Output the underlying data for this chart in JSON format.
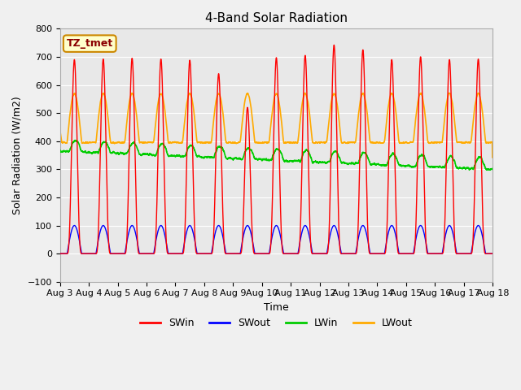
{
  "title": "4-Band Solar Radiation",
  "xlabel": "Time",
  "ylabel": "Solar Radiation (W/m2)",
  "annotation_label": "TZ_tmet",
  "ylim": [
    -100,
    800
  ],
  "background_color": "#f0f0f0",
  "plot_bg_color": "#e8e8e8",
  "legend_entries": [
    "SWin",
    "SWout",
    "LWin",
    "LWout"
  ],
  "line_colors": {
    "SWin": "#ff0000",
    "SWout": "#0000ff",
    "LWin": "#00cc00",
    "LWout": "#ffaa00"
  },
  "x_tick_labels": [
    "Aug 3",
    "Aug 4",
    "Aug 5",
    "Aug 6",
    "Aug 7",
    "Aug 8",
    "Aug 9",
    "Aug 10",
    "Aug 11",
    "Aug 12",
    "Aug 13",
    "Aug 14",
    "Aug 15",
    "Aug 16",
    "Aug 17",
    "Aug 18"
  ],
  "days": 15,
  "figsize": [
    6.4,
    4.8
  ],
  "dpi": 100
}
